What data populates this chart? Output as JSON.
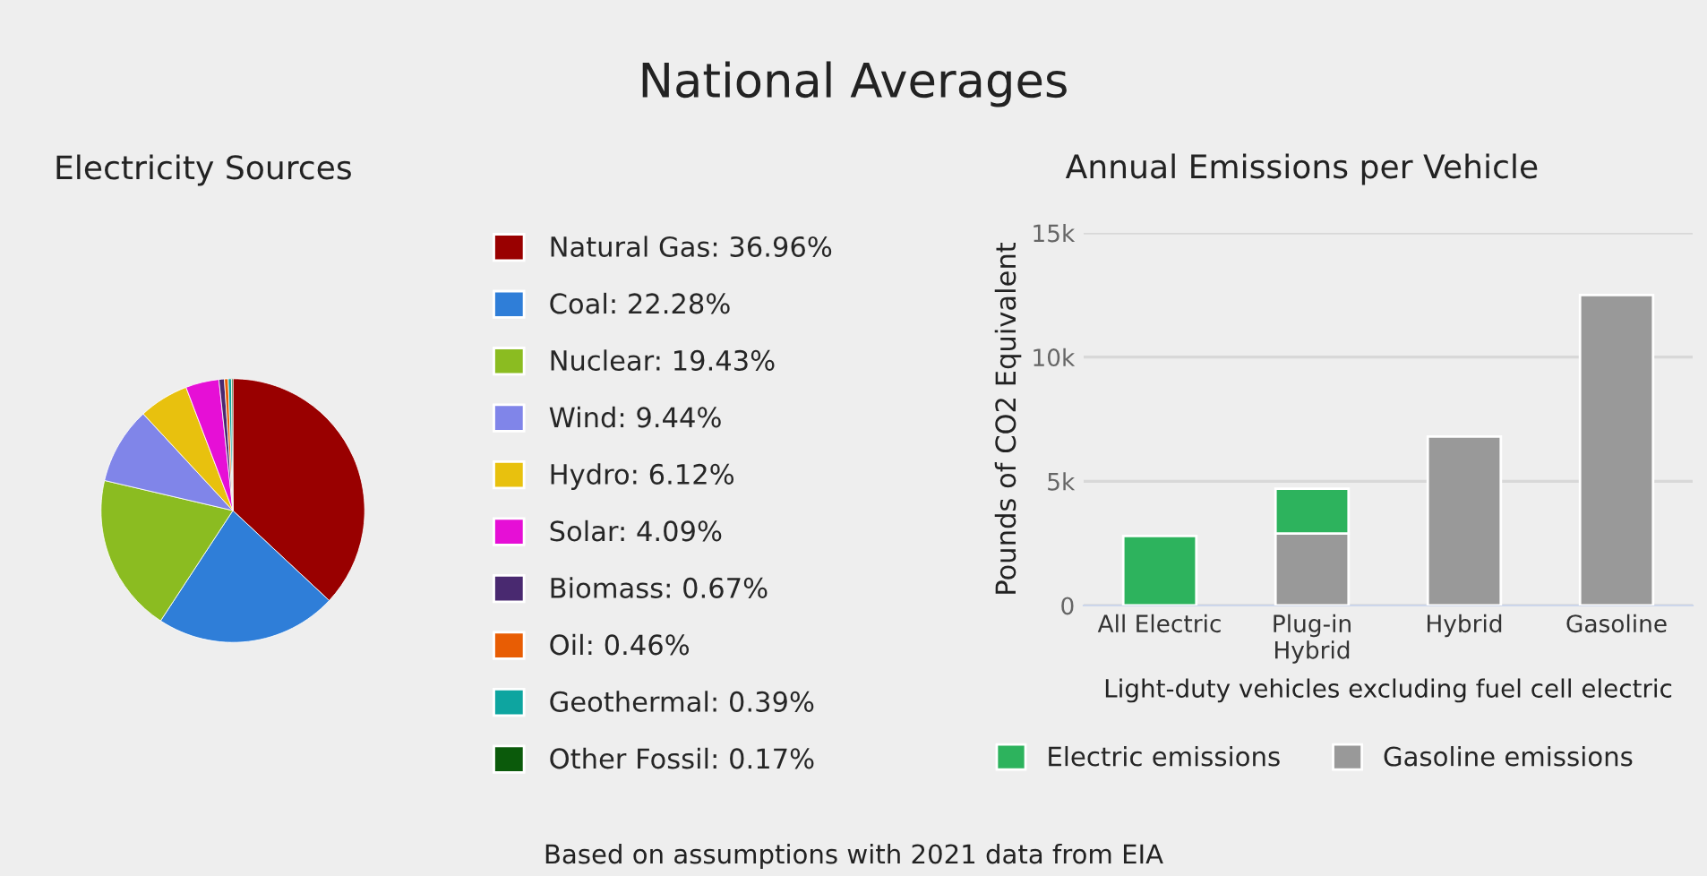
{
  "chart_data": [
    {
      "type": "pie",
      "title": "Electricity Sources",
      "legend": "right",
      "categories": [
        "Natural Gas",
        "Coal",
        "Nuclear",
        "Wind",
        "Hydro",
        "Solar",
        "Biomass",
        "Oil",
        "Geothermal",
        "Other Fossil"
      ],
      "values": [
        36.96,
        22.28,
        19.43,
        9.44,
        6.12,
        4.09,
        0.67,
        0.46,
        0.39,
        0.17
      ],
      "value_labels": [
        "36.96%",
        "22.28%",
        "19.43%",
        "9.44%",
        "6.12%",
        "4.09%",
        "0.67%",
        "0.46%",
        "0.39%",
        "0.17%"
      ],
      "colors": [
        "#990000",
        "#2f7ed8",
        "#8bbc21",
        "#8085e9",
        "#e8c10e",
        "#e60fd6",
        "#492970",
        "#e85d04",
        "#0ea5a0",
        "#0b5a0b"
      ],
      "annotations": [
        "National Averages"
      ]
    },
    {
      "type": "bar",
      "stacked": true,
      "title": "Annual Emissions per Vehicle",
      "legend": "bottom",
      "grid": "y",
      "categories": [
        "All Electric",
        "Plug-in\nHybrid",
        "Hybrid",
        "Gasoline"
      ],
      "series": [
        {
          "name": "Gasoline emissions",
          "color": "#999999",
          "values": [
            null,
            2900,
            6800,
            12500
          ]
        },
        {
          "name": "Electric emissions",
          "color": "#2db35d",
          "values": [
            2800,
            1800,
            null,
            null
          ]
        }
      ],
      "ylabel": "Pounds of CO2 Equivalent",
      "xlabel": "Light-duty vehicles excluding fuel cell electric",
      "ylim": [
        0,
        15000
      ],
      "yticks": [
        {
          "value": 0,
          "label": "0"
        },
        {
          "value": 5000,
          "label": "5k"
        },
        {
          "value": 10000,
          "label": "10k"
        },
        {
          "value": 15000,
          "label": "15k"
        }
      ],
      "annotations": [
        "Based on assumptions with 2021 data from EIA"
      ]
    }
  ]
}
